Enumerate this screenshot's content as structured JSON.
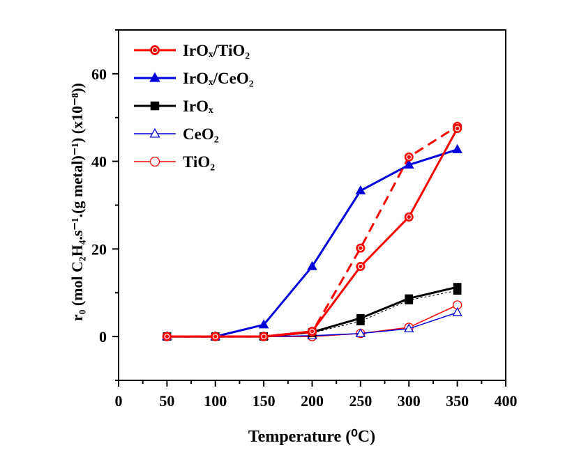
{
  "chart_data": {
    "type": "line",
    "xlabel": "Temperature (⁰C)",
    "ylabel": "r₀ (mol C₂H₄.s⁻¹.(g metal)⁻¹) (x10⁻⁸))",
    "xlim": [
      0,
      400
    ],
    "ylim": [
      -10,
      70
    ],
    "x_ticks": [
      "0",
      "50",
      "100",
      "150",
      "200",
      "250",
      "300",
      "350",
      "400"
    ],
    "y_ticks": [
      "0",
      "20",
      "40",
      "60"
    ],
    "legend_position": "top-left",
    "grid": false,
    "series": [
      {
        "name": "IrOₓ/TiO₂",
        "color": "#ff0000",
        "marker": "circle-filled",
        "line": "solid",
        "linewidth": 3,
        "x": [
          50,
          100,
          150,
          200,
          250,
          300,
          350
        ],
        "y": [
          0,
          0,
          0,
          1.2,
          16,
          27.3,
          47.5
        ],
        "repeat": {
          "line": "dashed",
          "x": [
            50,
            100,
            150,
            200,
            250,
            300,
            350
          ],
          "y": [
            0,
            0,
            0,
            1.0,
            20.2,
            41,
            48
          ]
        }
      },
      {
        "name": "IrOₓ/CeO₂",
        "color": "#0000dd",
        "marker": "triangle-filled",
        "line": "solid",
        "linewidth": 3,
        "x": [
          50,
          100,
          150,
          200,
          250,
          300,
          350
        ],
        "y": [
          0,
          0,
          2.7,
          16,
          33.3,
          39.2,
          42.7
        ]
      },
      {
        "name": "IrOₓ",
        "color": "#000000",
        "marker": "square-filled",
        "line": "solid",
        "linewidth": 3,
        "x": [
          50,
          100,
          150,
          200,
          250,
          300,
          350
        ],
        "y": [
          0,
          0,
          0,
          1.0,
          4.2,
          8.7,
          11.3
        ],
        "repeat": {
          "line": "dashed",
          "x": [
            50,
            100,
            150,
            200,
            250,
            300,
            350
          ],
          "y": [
            0,
            0,
            0,
            0.8,
            3.5,
            8.3,
            10.5
          ]
        }
      },
      {
        "name": "CeO₂",
        "color": "#0000dd",
        "marker": "triangle-open",
        "line": "solid",
        "linewidth": 1.5,
        "x": [
          50,
          100,
          150,
          200,
          250,
          300,
          350
        ],
        "y": [
          0,
          0,
          0,
          0.2,
          0.7,
          1.8,
          5.5
        ]
      },
      {
        "name": "TiO₂",
        "color": "#ff0000",
        "marker": "circle-open",
        "line": "solid",
        "linewidth": 1.5,
        "x": [
          50,
          100,
          150,
          200,
          250,
          300,
          350
        ],
        "y": [
          0,
          0,
          0,
          0,
          0.7,
          2.1,
          7.2
        ]
      }
    ]
  }
}
